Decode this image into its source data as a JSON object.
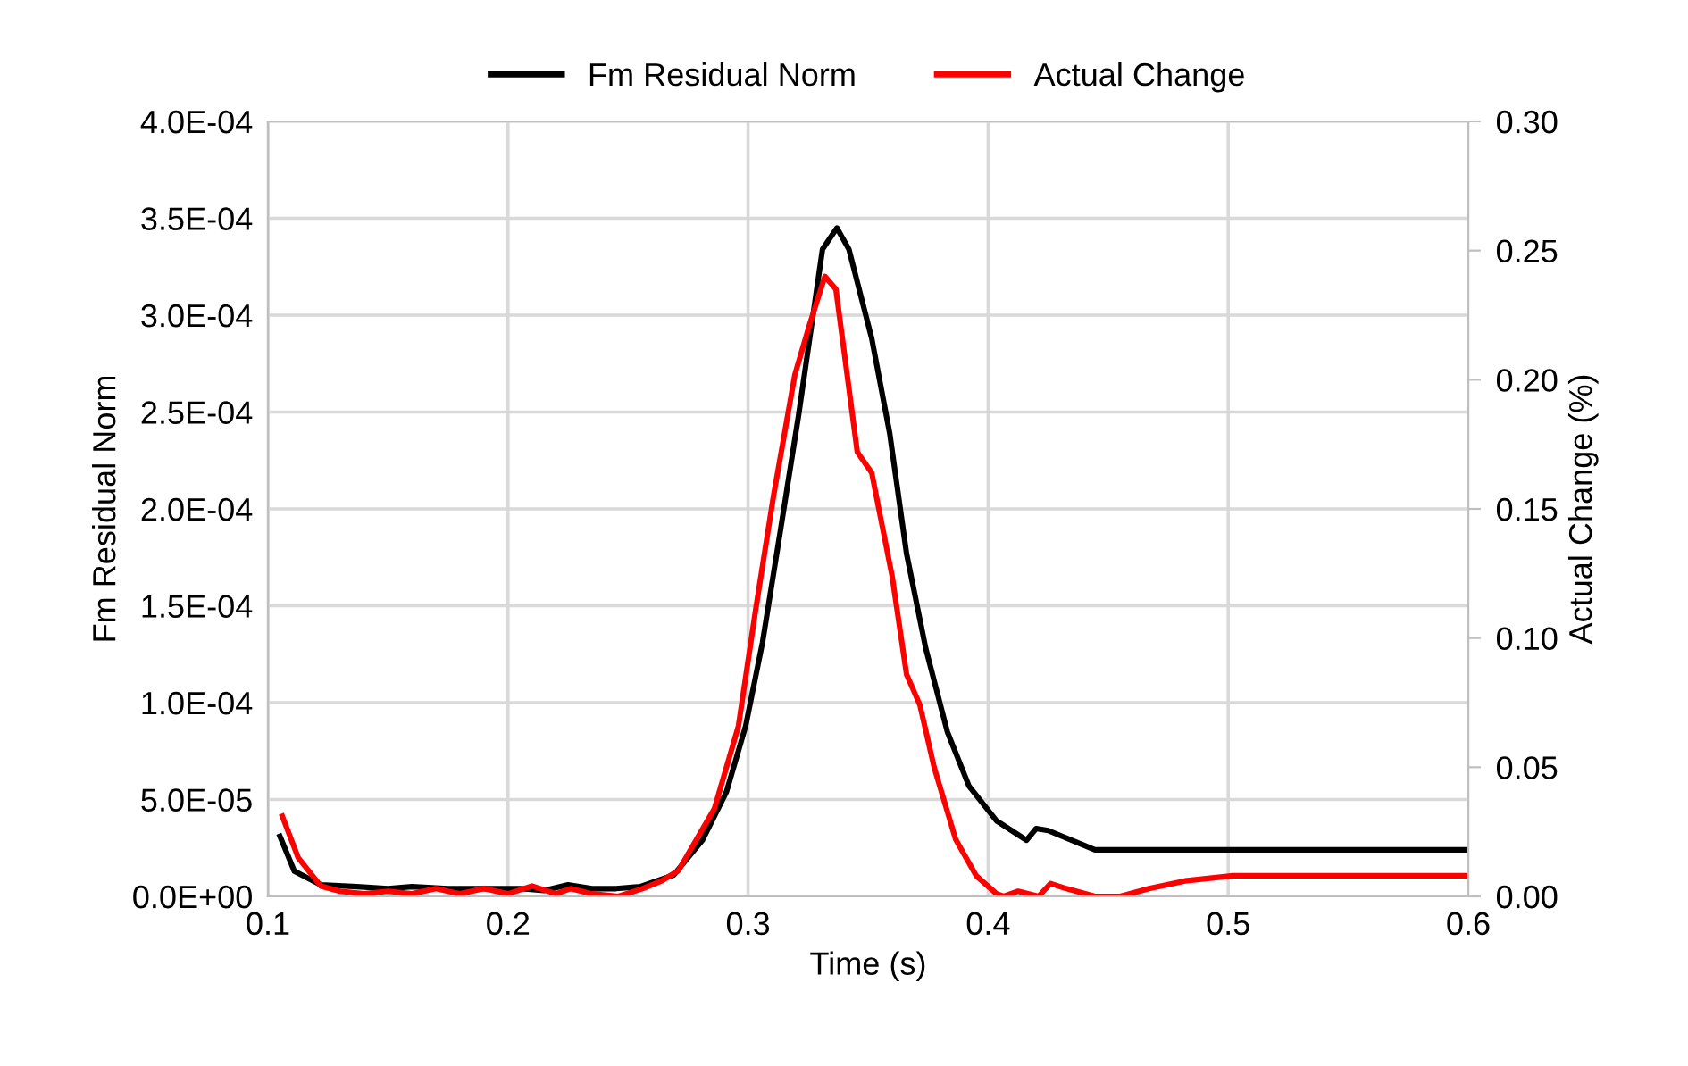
{
  "chart_data": {
    "type": "line",
    "xlabel": "Time (s)",
    "ylabel": "Fm Residual Norm",
    "y2label": "Actual Change (%)",
    "xlim": [
      0.1,
      0.6
    ],
    "xticks": [
      0.1,
      0.2,
      0.3,
      0.4,
      0.5,
      0.6
    ],
    "ylim": [
      0,
      0.0004
    ],
    "yticks": [
      {
        "value": 0,
        "label": "0.0E+00"
      },
      {
        "value": 5e-05,
        "label": "5.0E-05"
      },
      {
        "value": 0.0001,
        "label": "1.0E-04"
      },
      {
        "value": 0.00015,
        "label": "1.5E-04"
      },
      {
        "value": 0.0002,
        "label": "2.0E-04"
      },
      {
        "value": 0.00025,
        "label": "2.5E-04"
      },
      {
        "value": 0.0003,
        "label": "3.0E-04"
      },
      {
        "value": 0.00035,
        "label": "3.5E-04"
      },
      {
        "value": 0.0004,
        "label": "4.0E-04"
      }
    ],
    "y2lim": [
      0,
      0.3
    ],
    "y2ticks": [
      {
        "value": 0,
        "label": "0.00"
      },
      {
        "value": 0.05,
        "label": "0.05"
      },
      {
        "value": 0.1,
        "label": "0.10"
      },
      {
        "value": 0.15,
        "label": "0.15"
      },
      {
        "value": 0.2,
        "label": "0.20"
      },
      {
        "value": 0.25,
        "label": "0.25"
      },
      {
        "value": 0.3,
        "label": "0.30"
      }
    ],
    "grid": true,
    "legend": "top",
    "marker": "none",
    "line_style": "solid",
    "series": [
      {
        "name": "Fm Residual Norm",
        "color": "#000000",
        "axis": "y",
        "x": [
          0.105,
          0.111,
          0.122,
          0.137,
          0.15,
          0.16,
          0.175,
          0.19,
          0.205,
          0.215,
          0.225,
          0.235,
          0.245,
          0.255,
          0.262,
          0.269,
          0.281,
          0.291,
          0.299,
          0.306,
          0.3135,
          0.321,
          0.331,
          0.337,
          0.342,
          0.3515,
          0.359,
          0.366,
          0.374,
          0.383,
          0.392,
          0.4035,
          0.416,
          0.42,
          0.425,
          0.4445,
          0.5,
          0.55,
          0.6
        ],
        "values": [
          3.1e-05,
          1.3e-05,
          6e-06,
          5e-06,
          4e-06,
          5e-06,
          4e-06,
          4e-06,
          4e-06,
          3e-06,
          6e-06,
          4e-06,
          4e-06,
          5e-06,
          8e-06,
          1.1e-05,
          2.9e-05,
          5.4e-05,
          8.8e-05,
          0.000131,
          0.000189,
          0.000248,
          0.000334,
          0.000345,
          0.000334,
          0.000288,
          0.000239,
          0.000177,
          0.000128,
          8.5e-05,
          5.7e-05,
          3.9e-05,
          2.9e-05,
          3.5e-05,
          3.4e-05,
          2.4e-05,
          2.4e-05,
          2.4e-05,
          2.4e-05
        ]
      },
      {
        "name": "Actual Change",
        "color": "#ff0000",
        "axis": "y2",
        "x": [
          0.106,
          0.1126,
          0.122,
          0.13,
          0.14,
          0.15,
          0.16,
          0.17,
          0.18,
          0.19,
          0.2,
          0.21,
          0.22,
          0.226,
          0.235,
          0.246,
          0.256,
          0.264,
          0.271,
          0.286,
          0.296,
          0.303,
          0.3106,
          0.3195,
          0.3255,
          0.332,
          0.3366,
          0.3455,
          0.3515,
          0.36,
          0.366,
          0.3716,
          0.3775,
          0.3865,
          0.395,
          0.4035,
          0.4065,
          0.4125,
          0.421,
          0.426,
          0.4326,
          0.4445,
          0.455,
          0.467,
          0.482,
          0.502,
          0.55,
          0.6
        ],
        "values": [
          0.031,
          0.015,
          0.004,
          0.002,
          0.001,
          0.002,
          0.001,
          0.003,
          0.001,
          0.003,
          0.001,
          0.004,
          0.001,
          0.003,
          0.001,
          0.0,
          0.003,
          0.006,
          0.01,
          0.034,
          0.066,
          0.11,
          0.155,
          0.202,
          0.221,
          0.24,
          0.235,
          0.172,
          0.164,
          0.124,
          0.086,
          0.074,
          0.05,
          0.022,
          0.008,
          0.001,
          0.0,
          0.002,
          0.0,
          0.005,
          0.003,
          0.0,
          0.0,
          0.003,
          0.006,
          0.008,
          0.008,
          0.008
        ]
      }
    ]
  }
}
